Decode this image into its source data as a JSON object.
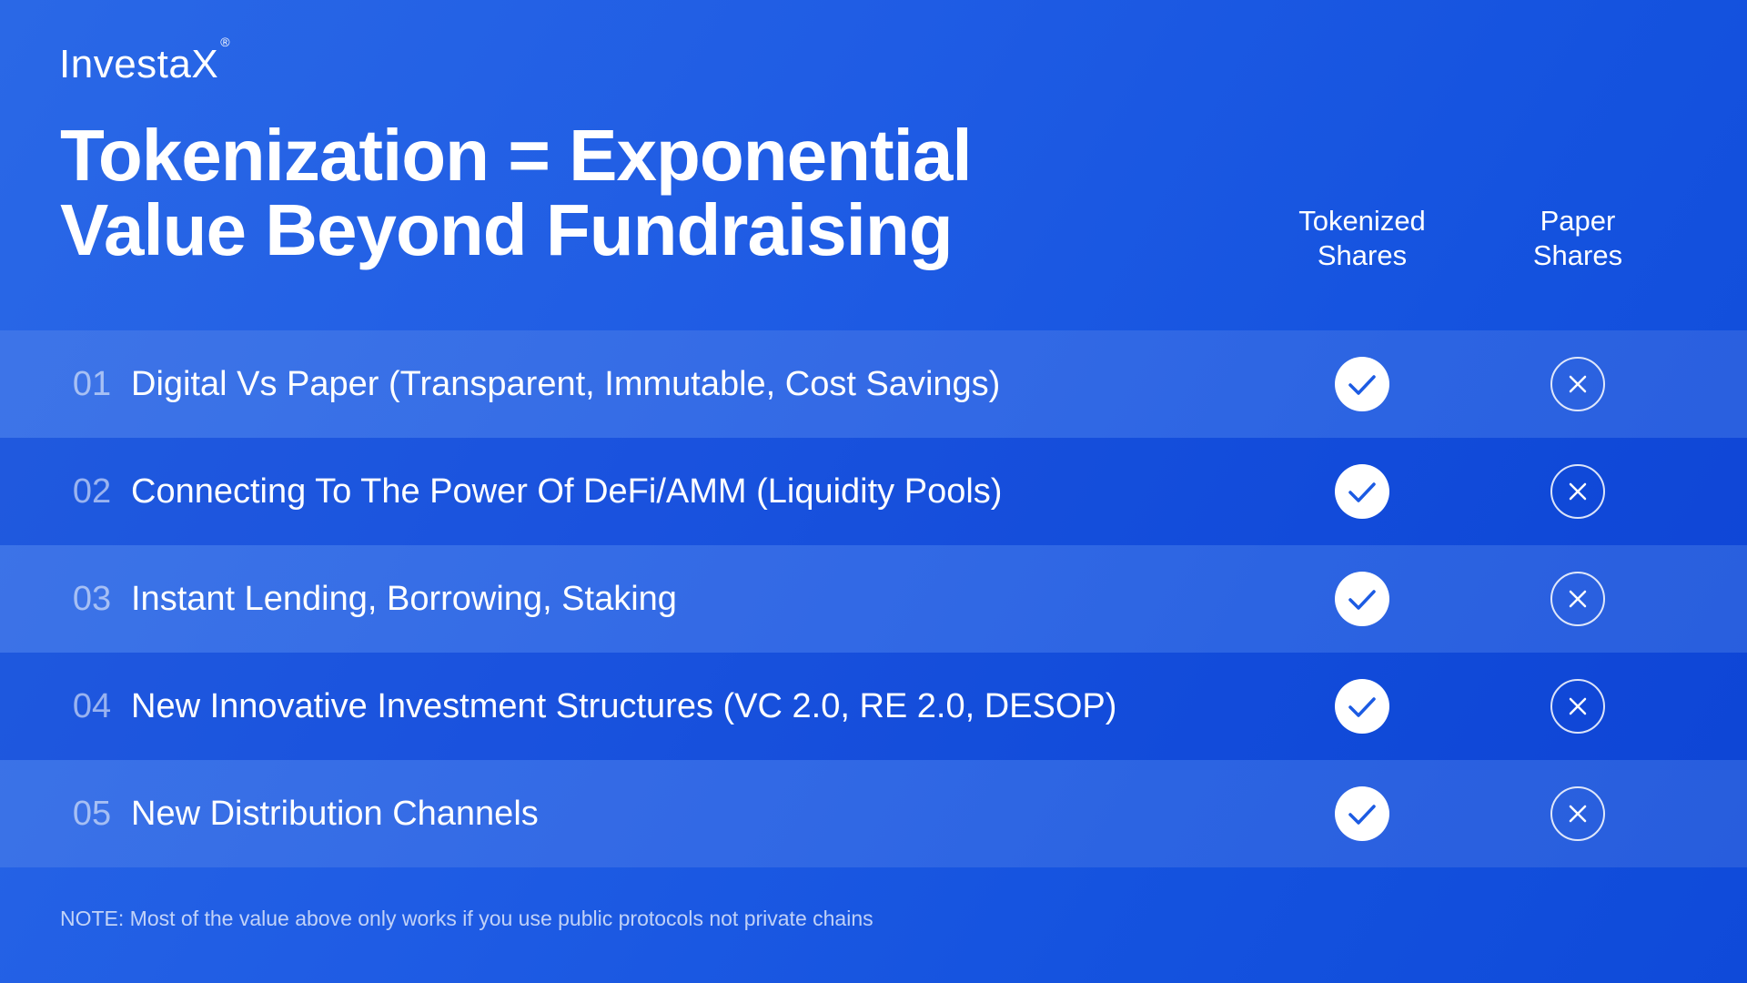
{
  "brand": {
    "name": "InvestaX",
    "mark": "®"
  },
  "title": {
    "line1": "Tokenization = Exponential",
    "line2": "Value Beyond Fundraising"
  },
  "columns": {
    "tokenized": {
      "line1": "Tokenized",
      "line2": "Shares"
    },
    "paper": {
      "line1": "Paper",
      "line2": "Shares"
    }
  },
  "rows": [
    {
      "num": "01",
      "label": "Digital Vs Paper (Transparent, Immutable, Cost Savings)",
      "tokenized": "check-icon",
      "paper": "x-icon"
    },
    {
      "num": "02",
      "label": "Connecting To The Power Of DeFi/AMM (Liquidity Pools)",
      "tokenized": "check-icon",
      "paper": "x-icon"
    },
    {
      "num": "03",
      "label": "Instant Lending, Borrowing, Staking",
      "tokenized": "check-icon",
      "paper": "x-icon"
    },
    {
      "num": "04",
      "label": "New Innovative Investment Structures (VC 2.0, RE 2.0, DESOP)",
      "tokenized": "check-icon",
      "paper": "x-icon"
    },
    {
      "num": "05",
      "label": "New Distribution Channels",
      "tokenized": "check-icon",
      "paper": "x-icon"
    }
  ],
  "note": "NOTE: Most of the value above only works if you use public protocols not private chains",
  "colors": {
    "background": "#1f5ce4",
    "accent": "#2f6bff",
    "text": "#ffffff"
  }
}
